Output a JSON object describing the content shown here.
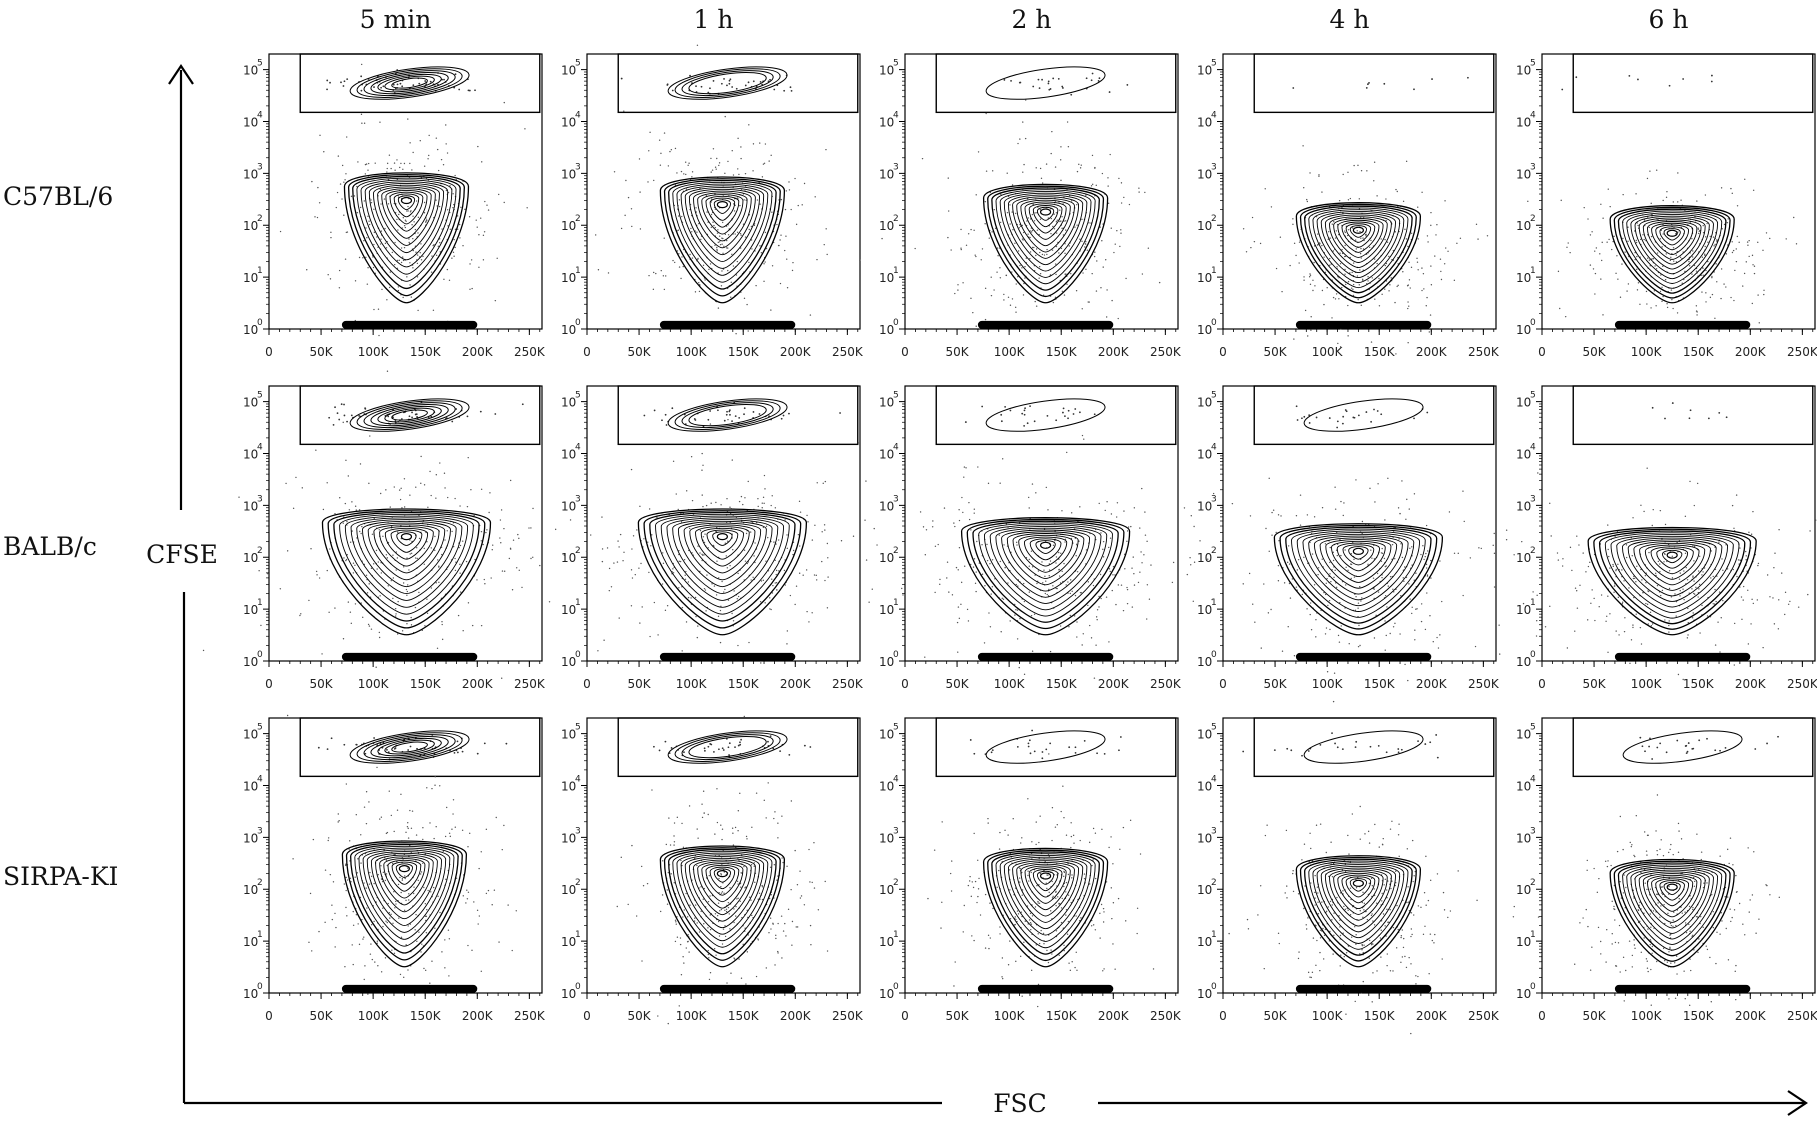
{
  "chart_data": {
    "type": "contour",
    "columns": [
      "5 min",
      "1 h",
      "2 h",
      "4 h",
      "6 h"
    ],
    "rows": [
      "C57BL/6",
      "BALB/c",
      "SIRPA-KI"
    ],
    "xlabel": "FSC",
    "ylabel": "CFSE",
    "x_ticks": [
      "0",
      "50K",
      "100K",
      "150K",
      "200K",
      "250K"
    ],
    "x_tick_values": [
      0,
      50000,
      100000,
      150000,
      200000,
      250000
    ],
    "y_ticks": [
      "10",
      "10",
      "10",
      "10",
      "10",
      "10"
    ],
    "y_tick_exponents": [
      "0",
      "1",
      "2",
      "3",
      "4",
      "5"
    ],
    "y_tick_values": [
      1,
      10,
      100,
      1000,
      10000,
      100000
    ],
    "xlim": [
      0,
      262144
    ],
    "ylim": [
      1,
      200000
    ],
    "y_scale": "log",
    "x_scale": "linear",
    "gate": {
      "x_range": [
        30000,
        260000
      ],
      "y_range": [
        15000,
        200000
      ]
    },
    "panels": [
      [
        {
          "gated_density": "high",
          "main_center_fsc": 132000,
          "main_center_cfse": 300,
          "main_width": "narrow"
        },
        {
          "gated_density": "medium",
          "main_center_fsc": 130000,
          "main_center_cfse": 250,
          "main_width": "narrow"
        },
        {
          "gated_density": "low",
          "main_center_fsc": 135000,
          "main_center_cfse": 180,
          "main_width": "narrow"
        },
        {
          "gated_density": "very low",
          "main_center_fsc": 130000,
          "main_center_cfse": 80,
          "main_width": "narrow"
        },
        {
          "gated_density": "very low",
          "main_center_fsc": 125000,
          "main_center_cfse": 70,
          "main_width": "narrow"
        }
      ],
      [
        {
          "gated_density": "high",
          "main_center_fsc": 132000,
          "main_center_cfse": 250,
          "main_width": "wide"
        },
        {
          "gated_density": "medium",
          "main_center_fsc": 130000,
          "main_center_cfse": 250,
          "main_width": "wide"
        },
        {
          "gated_density": "low",
          "main_center_fsc": 135000,
          "main_center_cfse": 170,
          "main_width": "wide"
        },
        {
          "gated_density": "low",
          "main_center_fsc": 130000,
          "main_center_cfse": 130,
          "main_width": "wide"
        },
        {
          "gated_density": "very low",
          "main_center_fsc": 125000,
          "main_center_cfse": 110,
          "main_width": "wide"
        }
      ],
      [
        {
          "gated_density": "high",
          "main_center_fsc": 130000,
          "main_center_cfse": 250,
          "main_width": "narrow"
        },
        {
          "gated_density": "medium",
          "main_center_fsc": 130000,
          "main_center_cfse": 200,
          "main_width": "narrow"
        },
        {
          "gated_density": "low",
          "main_center_fsc": 135000,
          "main_center_cfse": 180,
          "main_width": "narrow"
        },
        {
          "gated_density": "low",
          "main_center_fsc": 130000,
          "main_center_cfse": 130,
          "main_width": "narrow"
        },
        {
          "gated_density": "low",
          "main_center_fsc": 125000,
          "main_center_cfse": 110,
          "main_width": "narrow"
        }
      ]
    ]
  }
}
